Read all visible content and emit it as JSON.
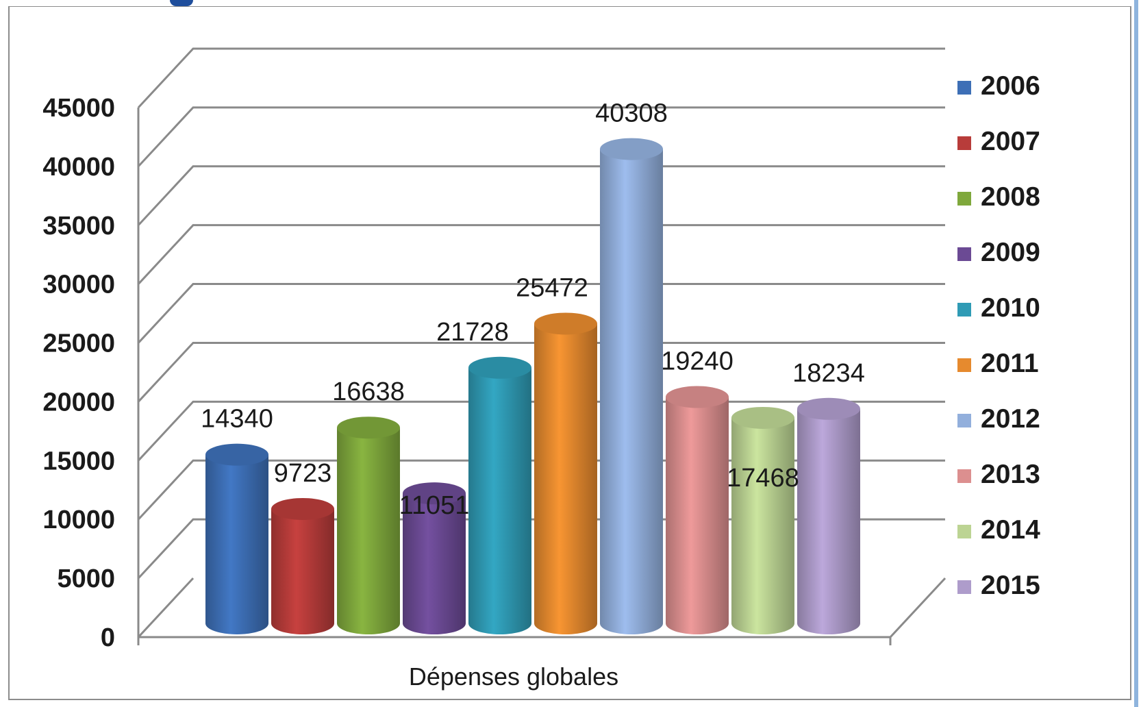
{
  "chart_data": {
    "type": "bar",
    "xlabel": "Dépenses globales",
    "ylabel": "",
    "ylim": [
      0,
      45000
    ],
    "yticks": [
      0,
      5000,
      10000,
      15000,
      20000,
      25000,
      30000,
      35000,
      40000,
      45000
    ],
    "grid": true,
    "legend_position": "right",
    "categories": [
      "Dépenses globales"
    ],
    "series": [
      {
        "name": "2006",
        "value": 14340,
        "color": "#3d6fb6"
      },
      {
        "name": "2007",
        "value": 9723,
        "color": "#b83c3a"
      },
      {
        "name": "2008",
        "value": 16638,
        "color": "#7fa83c"
      },
      {
        "name": "2009",
        "value": 11051,
        "color": "#6b4a94"
      },
      {
        "name": "2010",
        "value": 21728,
        "color": "#2f9bb5"
      },
      {
        "name": "2011",
        "value": 25472,
        "color": "#e68a2e"
      },
      {
        "name": "2012",
        "value": 40308,
        "color": "#92afdc"
      },
      {
        "name": "2013",
        "value": 19240,
        "color": "#dc8f8f"
      },
      {
        "name": "2014",
        "value": 17468,
        "color": "#bcd493"
      },
      {
        "name": "2015",
        "value": 18234,
        "color": "#ae9ccb"
      }
    ]
  }
}
